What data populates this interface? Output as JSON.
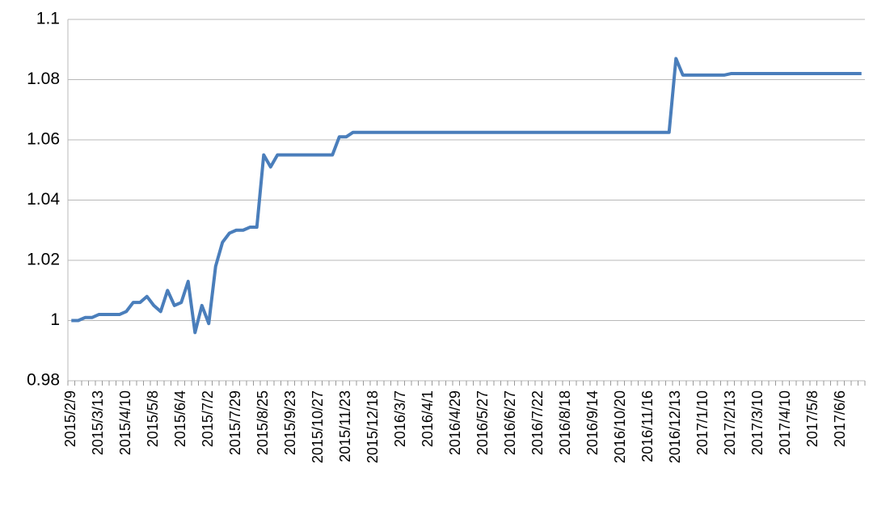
{
  "chart_data": {
    "type": "line",
    "categories": [
      "2015/2/9",
      null,
      null,
      null,
      "2015/3/13",
      null,
      null,
      null,
      "2015/4/10",
      null,
      null,
      null,
      "2015/5/8",
      null,
      null,
      null,
      "2015/6/4",
      null,
      null,
      null,
      "2015/7/2",
      null,
      null,
      null,
      "2015/7/29",
      null,
      null,
      null,
      "2015/8/25",
      null,
      null,
      null,
      "2015/9/23",
      null,
      null,
      null,
      "2015/10/27",
      null,
      null,
      null,
      "2015/11/23",
      null,
      null,
      null,
      "2015/12/18",
      null,
      null,
      null,
      "2016/3/7",
      null,
      null,
      null,
      "2016/4/1",
      null,
      null,
      null,
      "2016/4/29",
      null,
      null,
      null,
      "2016/5/27",
      null,
      null,
      null,
      "2016/6/27",
      null,
      null,
      null,
      "2016/7/22",
      null,
      null,
      null,
      "2016/8/18",
      null,
      null,
      null,
      "2016/9/14",
      null,
      null,
      null,
      "2016/10/20",
      null,
      null,
      null,
      "2016/11/16",
      null,
      null,
      null,
      "2016/12/13",
      null,
      null,
      null,
      "2017/1/10",
      null,
      null,
      null,
      "2017/2/13",
      null,
      null,
      null,
      "2017/3/10",
      null,
      null,
      null,
      "2017/4/10",
      null,
      null,
      null,
      "2017/5/8",
      null,
      null,
      null,
      "2017/6/6",
      null,
      null,
      null
    ],
    "values": [
      1.0,
      1.0,
      1.001,
      1.001,
      1.002,
      1.002,
      1.002,
      1.002,
      1.003,
      1.006,
      1.006,
      1.008,
      1.005,
      1.003,
      1.01,
      1.005,
      1.006,
      1.013,
      0.996,
      1.005,
      0.999,
      1.018,
      1.026,
      1.029,
      1.03,
      1.03,
      1.031,
      1.031,
      1.055,
      1.051,
      1.055,
      1.055,
      1.055,
      1.055,
      1.055,
      1.055,
      1.055,
      1.055,
      1.055,
      1.061,
      1.061,
      1.0625,
      1.0625,
      1.0625,
      1.0625,
      1.0625,
      1.0625,
      1.0625,
      1.0625,
      1.0625,
      1.0625,
      1.0625,
      1.0625,
      1.0625,
      1.0625,
      1.0625,
      1.0625,
      1.0625,
      1.0625,
      1.0625,
      1.0625,
      1.0625,
      1.0625,
      1.0625,
      1.0625,
      1.0625,
      1.0625,
      1.0625,
      1.0625,
      1.0625,
      1.0625,
      1.0625,
      1.0625,
      1.0625,
      1.0625,
      1.0625,
      1.0625,
      1.0625,
      1.0625,
      1.0625,
      1.0625,
      1.0625,
      1.0625,
      1.0625,
      1.0625,
      1.0625,
      1.0625,
      1.0625,
      1.087,
      1.0815,
      1.0815,
      1.0815,
      1.0815,
      1.0815,
      1.0815,
      1.0815,
      1.082,
      1.082,
      1.082,
      1.082,
      1.082,
      1.082,
      1.082,
      1.082,
      1.082,
      1.082,
      1.082,
      1.082,
      1.082,
      1.082,
      1.082,
      1.082,
      1.082,
      1.082,
      1.082,
      1.082
    ],
    "color": "#4a7ebb",
    "ylim": [
      0.98,
      1.1
    ],
    "yticks": [
      0.98,
      1,
      1.02,
      1.04,
      1.06,
      1.08,
      1.1
    ],
    "grid": true
  }
}
